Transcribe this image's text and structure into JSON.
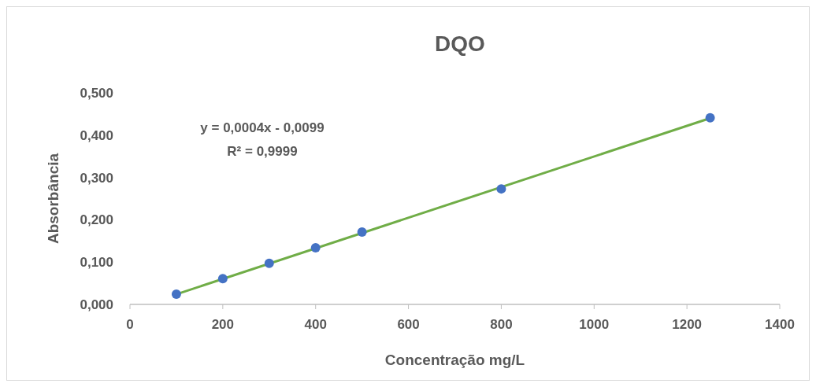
{
  "chart_data": {
    "type": "scatter",
    "title": "DQO",
    "xlabel": "Concentração mg/L",
    "ylabel": "Absorbância",
    "xlim": [
      0,
      1400
    ],
    "xticks": [
      0,
      200,
      400,
      600,
      800,
      1000,
      1200,
      1400
    ],
    "ylim": [
      0,
      0.5
    ],
    "yticks": [
      {
        "value": 0,
        "label": "0,000"
      },
      {
        "value": 0.1,
        "label": "0,100"
      },
      {
        "value": 0.2,
        "label": "0,200"
      },
      {
        "value": 0.3,
        "label": "0,300"
      },
      {
        "value": 0.4,
        "label": "0,400"
      },
      {
        "value": 0.5,
        "label": "0,500"
      }
    ],
    "grid": false,
    "series": [
      {
        "marker": "circle",
        "color": "#4472c4",
        "x": [
          100,
          200,
          300,
          400,
          500,
          800,
          1250
        ],
        "values": [
          0.024,
          0.061,
          0.097,
          0.134,
          0.171,
          0.273,
          0.441
        ]
      },
      {
        "type": "line",
        "marker": "none",
        "color": "#70ad47",
        "line_style": "solid",
        "x": [
          100,
          1250
        ],
        "values": [
          0.024,
          0.44
        ]
      }
    ],
    "annotations": [
      "y = 0,0004x - 0,0099",
      "R² = 0,9999"
    ]
  }
}
